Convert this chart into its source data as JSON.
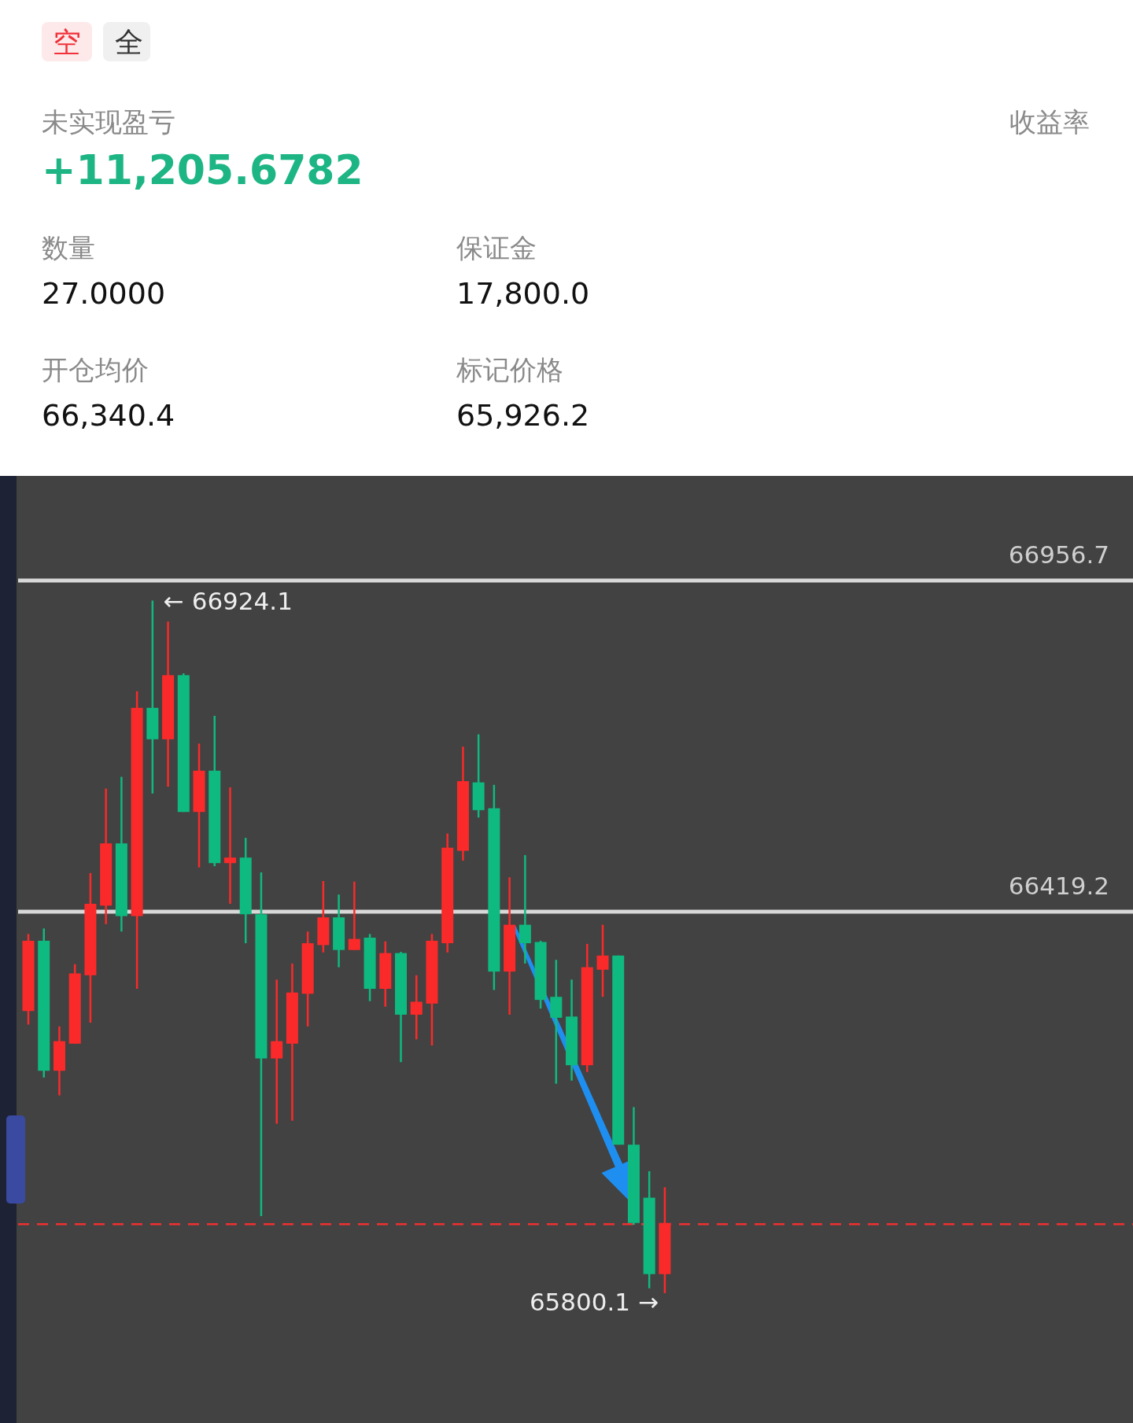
{
  "chart_data": [
    {
      "type": "other",
      "annotations": [
        "空",
        "全",
        "未实现盈亏",
        "+11,205.6782",
        "收益率",
        "数量",
        "27.0000",
        "保证金",
        "17,800.0",
        "开仓均价",
        "66,340.4",
        "标记价格",
        "65,926.2"
      ]
    },
    {
      "type": "candlestick",
      "categories": [
        null,
        null,
        null,
        null,
        null,
        null,
        null,
        null,
        null,
        null,
        null,
        null,
        null,
        null,
        null,
        null,
        null,
        null,
        null,
        null,
        null,
        null,
        null,
        null,
        null,
        null,
        null,
        null,
        null,
        null,
        null,
        null,
        null,
        null,
        null,
        null,
        null,
        null,
        null,
        null,
        null,
        null
      ],
      "ohlc": [
        [
          66258,
          66383,
          66236,
          66372
        ],
        [
          66372,
          66392,
          66150,
          66161
        ],
        [
          66161,
          66233,
          66121,
          66209
        ],
        [
          66205,
          66334,
          66205,
          66319
        ],
        [
          66316,
          66482,
          66239,
          66432
        ],
        [
          66429,
          66619,
          66399,
          66530
        ],
        [
          66530,
          66638,
          66387,
          66412
        ],
        [
          66412,
          66777,
          66294,
          66750
        ],
        [
          66750,
          66924.1,
          66611,
          66699
        ],
        [
          66699,
          66890,
          66622,
          66803
        ],
        [
          66803,
          66806,
          66581,
          66581
        ],
        [
          66581,
          66692,
          66491,
          66648
        ],
        [
          66648,
          66737,
          66493,
          66498
        ],
        [
          66498,
          66621,
          66432,
          66507
        ],
        [
          66507,
          66539,
          66368,
          66415
        ],
        [
          66415,
          66483,
          65925,
          66181
        ],
        [
          66181,
          66309,
          66075,
          66209
        ],
        [
          66205,
          66335,
          66080,
          66288
        ],
        [
          66286,
          66387,
          66233,
          66368
        ],
        [
          66365,
          66469,
          66353,
          66410
        ],
        [
          66410,
          66447,
          66329,
          66357
        ],
        [
          66357,
          66468,
          66357,
          66375
        ],
        [
          66377,
          66383,
          66274,
          66294
        ],
        [
          66294,
          66371,
          66265,
          66352
        ],
        [
          66352,
          66354,
          66175,
          66252
        ],
        [
          66252,
          66316,
          66212,
          66273
        ],
        [
          66270,
          66383,
          66202,
          66372
        ],
        [
          66368,
          66546,
          66353,
          66523
        ],
        [
          66518,
          66687,
          66502,
          66631
        ],
        [
          66629,
          66707,
          66572,
          66584
        ],
        [
          66587,
          66625,
          66292,
          66322
        ],
        [
          66322,
          66475,
          66252,
          66398
        ],
        [
          66398,
          66511,
          66335,
          66368
        ],
        [
          66370,
          66372,
          66262,
          66276
        ],
        [
          66281,
          66341,
          66140,
          66247
        ],
        [
          66249,
          66309,
          66145,
          66170
        ],
        [
          66170,
          66367,
          66159,
          66329
        ],
        [
          66325,
          66398,
          66281,
          66348
        ],
        [
          66348,
          66348,
          66041,
          66041
        ],
        [
          66041,
          66102,
          65911,
          65914
        ],
        [
          65955,
          65998,
          65808,
          65831
        ],
        [
          65831,
          65972,
          65800.1,
          65914
        ]
      ],
      "colors": [
        "#fb2a2a",
        "#0fba81",
        "#fb2a2a",
        "#fb2a2a",
        "#fb2a2a",
        "#fb2a2a",
        "#0fba81",
        "#fb2a2a",
        "#0fba81",
        "#fb2a2a",
        "#0fba81",
        "#fb2a2a",
        "#0fba81",
        "#fb2a2a",
        "#0fba81",
        "#0fba81",
        "#fb2a2a",
        "#fb2a2a",
        "#fb2a2a",
        "#fb2a2a",
        "#0fba81",
        "#fb2a2a",
        "#0fba81",
        "#fb2a2a",
        "#0fba81",
        "#fb2a2a",
        "#fb2a2a",
        "#fb2a2a",
        "#fb2a2a",
        "#0fba81",
        "#0fba81",
        "#fb2a2a",
        "#0fba81",
        "#0fba81",
        "#0fba81",
        "#0fba81",
        "#fb2a2a",
        "#fb2a2a",
        "#0fba81",
        "#0fba81",
        "#0fba81",
        "#fb2a2a"
      ],
      "ref_lines": [
        {
          "axis": "y",
          "value": 66956.7,
          "label": "66956.7",
          "color": "#d8d8d8"
        },
        {
          "axis": "y",
          "value": 66419.2,
          "label": "66419.2",
          "color": "#d8d8d8"
        },
        {
          "axis": "y",
          "value": 65912,
          "color": "#f03030",
          "line_style": "dashed"
        }
      ],
      "annotations": [
        "← 66924.1",
        "65800.1 →"
      ]
    }
  ]
}
